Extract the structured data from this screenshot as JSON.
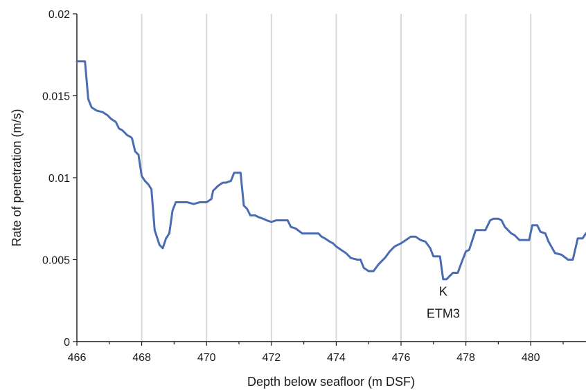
{
  "chart_data": {
    "type": "line",
    "xlabel": "Depth below seafloor (m DSF)",
    "ylabel": "Rate of penetration (m/s)",
    "xlim": [
      466,
      481.7
    ],
    "ylim": [
      0,
      0.02
    ],
    "x_ticks": [
      "466",
      "468",
      "470",
      "472",
      "474",
      "476",
      "478",
      "480"
    ],
    "y_ticks": [
      "0",
      "0.005",
      "0.01",
      "0.015",
      "0.02"
    ],
    "grid": "vertical",
    "line_color": "#4a6cb3",
    "annotations": [
      {
        "text": "K",
        "x": 477.3,
        "y": 0.0028
      },
      {
        "text": "ETM3",
        "x": 477.3,
        "y": 0.00145
      }
    ],
    "series": [
      {
        "x": [
          466.0,
          466.25,
          466.35,
          466.45,
          466.6,
          466.8,
          466.95,
          467.05,
          467.2,
          467.3,
          467.4,
          467.5,
          467.55,
          467.65,
          467.7,
          467.8,
          467.9,
          468.0,
          468.1,
          468.2,
          468.3,
          468.4,
          468.55,
          468.65,
          468.75,
          468.85,
          468.95,
          469.05,
          469.2,
          469.4,
          469.6,
          469.8,
          470.0,
          470.15,
          470.2,
          470.35,
          470.5,
          470.6,
          470.75,
          470.85,
          470.95,
          471.05,
          471.15,
          471.25,
          471.35,
          471.5,
          471.6,
          471.75,
          471.85,
          472.0,
          472.15,
          472.35,
          472.5,
          472.6,
          472.75,
          472.95,
          473.05,
          473.25,
          473.45,
          473.55,
          473.65,
          473.8,
          473.9,
          474.0,
          474.15,
          474.3,
          474.45,
          474.65,
          474.75,
          474.85,
          475.0,
          475.15,
          475.3,
          475.5,
          475.65,
          475.8,
          476.0,
          476.15,
          476.3,
          476.45,
          476.6,
          476.75,
          476.9,
          477.0,
          477.2,
          477.3,
          477.4,
          477.6,
          477.75,
          477.9,
          478.0,
          478.1,
          478.2,
          478.3,
          478.45,
          478.6,
          478.75,
          478.85,
          479.0,
          479.1,
          479.2,
          479.3,
          479.4,
          479.5,
          479.65,
          479.85,
          479.95,
          480.05,
          480.2,
          480.3,
          480.45,
          480.55,
          480.75,
          480.95,
          481.15,
          481.3,
          481.45,
          481.6,
          481.7
        ],
        "y": [
          0.0171,
          0.0171,
          0.0148,
          0.0143,
          0.0141,
          0.014,
          0.0138,
          0.0136,
          0.0134,
          0.013,
          0.0129,
          0.0127,
          0.0126,
          0.0125,
          0.0124,
          0.0116,
          0.0114,
          0.0101,
          0.0098,
          0.0096,
          0.0093,
          0.0068,
          0.0059,
          0.0057,
          0.0063,
          0.0066,
          0.008,
          0.0085,
          0.0085,
          0.0085,
          0.0084,
          0.0085,
          0.0085,
          0.0087,
          0.0092,
          0.0095,
          0.0097,
          0.0097,
          0.0098,
          0.0103,
          0.0103,
          0.0103,
          0.0083,
          0.0081,
          0.0077,
          0.0077,
          0.0076,
          0.0075,
          0.0074,
          0.0073,
          0.0074,
          0.0074,
          0.0074,
          0.007,
          0.0069,
          0.0066,
          0.0066,
          0.0066,
          0.0066,
          0.0064,
          0.0063,
          0.0061,
          0.006,
          0.0058,
          0.0056,
          0.0054,
          0.0051,
          0.005,
          0.005,
          0.0045,
          0.0043,
          0.0043,
          0.0047,
          0.0051,
          0.0055,
          0.0058,
          0.006,
          0.0062,
          0.0064,
          0.0064,
          0.0062,
          0.0061,
          0.0057,
          0.0052,
          0.0052,
          0.0038,
          0.0038,
          0.0042,
          0.0042,
          0.005,
          0.0055,
          0.0056,
          0.0062,
          0.0068,
          0.0068,
          0.0068,
          0.0074,
          0.0075,
          0.0075,
          0.0074,
          0.007,
          0.0068,
          0.0066,
          0.0065,
          0.0062,
          0.0062,
          0.0062,
          0.0071,
          0.0071,
          0.0067,
          0.0066,
          0.0061,
          0.0054,
          0.0053,
          0.005,
          0.005,
          0.0063,
          0.0063,
          0.0066
        ]
      }
    ]
  }
}
